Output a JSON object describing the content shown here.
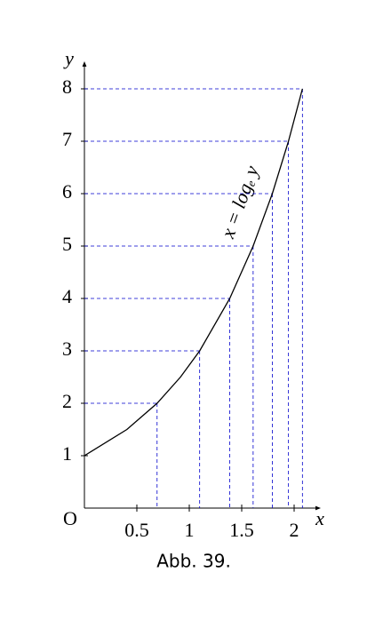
{
  "chart_data": {
    "type": "line",
    "x": [
      0,
      0.405,
      0.693,
      0.916,
      1.099,
      1.386,
      1.609,
      1.792,
      1.946,
      2.079
    ],
    "series": [
      {
        "name": null,
        "color": "#000000",
        "values": [
          1,
          1.5,
          2,
          2.5,
          3,
          4,
          5,
          6,
          7,
          8
        ]
      }
    ],
    "xlim": [
      0,
      2.23
    ],
    "ylim": [
      0,
      8.47
    ],
    "xticks": [
      0.5,
      1,
      1.5,
      2
    ],
    "yticks": [
      1,
      2,
      3,
      4,
      5,
      6,
      7,
      8
    ],
    "xlabel": "x",
    "ylabel": "y",
    "origin_label": "O",
    "curve_label": "x = logₑ y",
    "guide_color": "#0000cc",
    "caption": "Abb. 39."
  }
}
